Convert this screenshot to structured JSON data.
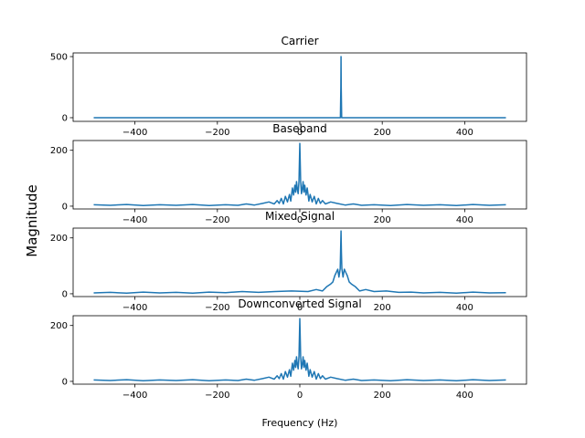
{
  "figure": {
    "ylabel": "Magnitude",
    "xlabel": "Frequency (Hz)"
  },
  "chart_data": [
    {
      "type": "line",
      "title": "Carrier",
      "xlabel": "",
      "ylabel": "",
      "xlim": [
        -550,
        550
      ],
      "ylim": [
        -30,
        530
      ],
      "xticks": [
        -400,
        -200,
        0,
        200,
        400
      ],
      "xtick_labels": [
        "−400",
        "−200",
        "0",
        "200",
        "400"
      ],
      "yticks": [
        0,
        500
      ],
      "ytick_labels": [
        "0",
        "500"
      ],
      "grid": false,
      "series": [
        {
          "color": "#1f77b4",
          "x": [
            -500,
            98.5,
            99.5,
            100,
            100.5,
            101.5,
            500
          ],
          "y": [
            0,
            0,
            250,
            500,
            250,
            0,
            0
          ]
        }
      ]
    },
    {
      "type": "line",
      "title": "Baseband",
      "xlabel": "",
      "ylabel": "",
      "xlim": [
        -550,
        550
      ],
      "ylim": [
        -10,
        235
      ],
      "xticks": [
        -400,
        -200,
        0,
        200,
        400
      ],
      "xtick_labels": [
        "−400",
        "−200",
        "0",
        "200",
        "400"
      ],
      "yticks": [
        0,
        200
      ],
      "ytick_labels": [
        "0",
        "200"
      ],
      "grid": false,
      "series": [
        {
          "color": "#1f77b4",
          "x": [
            -500,
            -460,
            -420,
            -380,
            -340,
            -300,
            -260,
            -220,
            -180,
            -150,
            -130,
            -110,
            -90,
            -75,
            -62,
            -55,
            -50,
            -45,
            -40,
            -35,
            -30,
            -25,
            -22,
            -18,
            -15,
            -12,
            -10,
            -8,
            -6,
            -4,
            -2,
            -1,
            0,
            1,
            2,
            4,
            6,
            8,
            10,
            12,
            15,
            18,
            22,
            25,
            30,
            35,
            40,
            45,
            50,
            55,
            62,
            75,
            90,
            110,
            130,
            150,
            180,
            220,
            260,
            300,
            340,
            380,
            420,
            460,
            500
          ],
          "y": [
            5,
            3,
            6,
            2,
            5,
            3,
            6,
            2,
            5,
            3,
            8,
            4,
            10,
            15,
            8,
            20,
            10,
            28,
            8,
            35,
            15,
            42,
            18,
            65,
            40,
            75,
            50,
            88,
            60,
            45,
            90,
            150,
            225,
            150,
            90,
            45,
            60,
            88,
            50,
            75,
            40,
            65,
            18,
            42,
            15,
            35,
            8,
            28,
            10,
            20,
            8,
            15,
            10,
            4,
            8,
            3,
            5,
            2,
            6,
            3,
            5,
            2,
            6,
            3,
            5
          ]
        }
      ]
    },
    {
      "type": "line",
      "title": "Mixed Signal",
      "xlabel": "",
      "ylabel": "",
      "xlim": [
        -550,
        550
      ],
      "ylim": [
        -10,
        235
      ],
      "xticks": [
        -400,
        -200,
        0,
        200,
        400
      ],
      "xtick_labels": [
        "−400",
        "−200",
        "0",
        "200",
        "400"
      ],
      "yticks": [
        0,
        200
      ],
      "ytick_labels": [
        "0",
        "200"
      ],
      "grid": false,
      "series": [
        {
          "color": "#1f77b4",
          "x": [
            -500,
            -460,
            -420,
            -380,
            -340,
            -300,
            -260,
            -220,
            -180,
            -140,
            -100,
            -60,
            -20,
            20,
            40,
            55,
            65,
            75,
            80,
            85,
            88,
            92,
            95,
            98,
            99,
            100,
            101,
            102,
            105,
            108,
            112,
            115,
            120,
            125,
            135,
            145,
            160,
            180,
            210,
            240,
            270,
            300,
            340,
            380,
            420,
            460,
            500
          ],
          "y": [
            3,
            5,
            2,
            6,
            3,
            5,
            2,
            6,
            4,
            8,
            5,
            8,
            10,
            8,
            15,
            10,
            25,
            35,
            42,
            65,
            75,
            88,
            60,
            90,
            150,
            225,
            150,
            90,
            60,
            88,
            75,
            65,
            42,
            35,
            25,
            10,
            15,
            8,
            10,
            5,
            6,
            3,
            5,
            2,
            6,
            3,
            4
          ]
        }
      ]
    },
    {
      "type": "line",
      "title": "Downconverted Signal",
      "xlabel": "Frequency (Hz)",
      "ylabel": "",
      "xlim": [
        -550,
        550
      ],
      "ylim": [
        -10,
        235
      ],
      "xticks": [
        -400,
        -200,
        0,
        200,
        400
      ],
      "xtick_labels": [
        "−400",
        "−200",
        "0",
        "200",
        "400"
      ],
      "yticks": [
        0,
        200
      ],
      "ytick_labels": [
        "0",
        "200"
      ],
      "grid": false,
      "series": [
        {
          "color": "#1f77b4",
          "x": [
            -500,
            -460,
            -420,
            -380,
            -340,
            -300,
            -260,
            -220,
            -180,
            -150,
            -130,
            -110,
            -90,
            -75,
            -62,
            -55,
            -50,
            -45,
            -40,
            -35,
            -30,
            -25,
            -22,
            -18,
            -15,
            -12,
            -10,
            -8,
            -6,
            -4,
            -2,
            -1,
            0,
            1,
            2,
            4,
            6,
            8,
            10,
            12,
            15,
            18,
            22,
            25,
            30,
            35,
            40,
            45,
            50,
            55,
            62,
            75,
            90,
            110,
            130,
            150,
            180,
            220,
            260,
            300,
            340,
            380,
            420,
            460,
            500
          ],
          "y": [
            5,
            3,
            6,
            2,
            5,
            3,
            6,
            2,
            5,
            3,
            8,
            4,
            10,
            15,
            8,
            20,
            10,
            28,
            8,
            35,
            15,
            42,
            18,
            65,
            40,
            75,
            50,
            88,
            60,
            45,
            90,
            150,
            225,
            150,
            90,
            45,
            60,
            88,
            50,
            75,
            40,
            65,
            18,
            42,
            15,
            35,
            8,
            28,
            10,
            20,
            8,
            15,
            10,
            4,
            8,
            3,
            5,
            2,
            6,
            3,
            5,
            2,
            6,
            3,
            5
          ]
        }
      ]
    }
  ]
}
